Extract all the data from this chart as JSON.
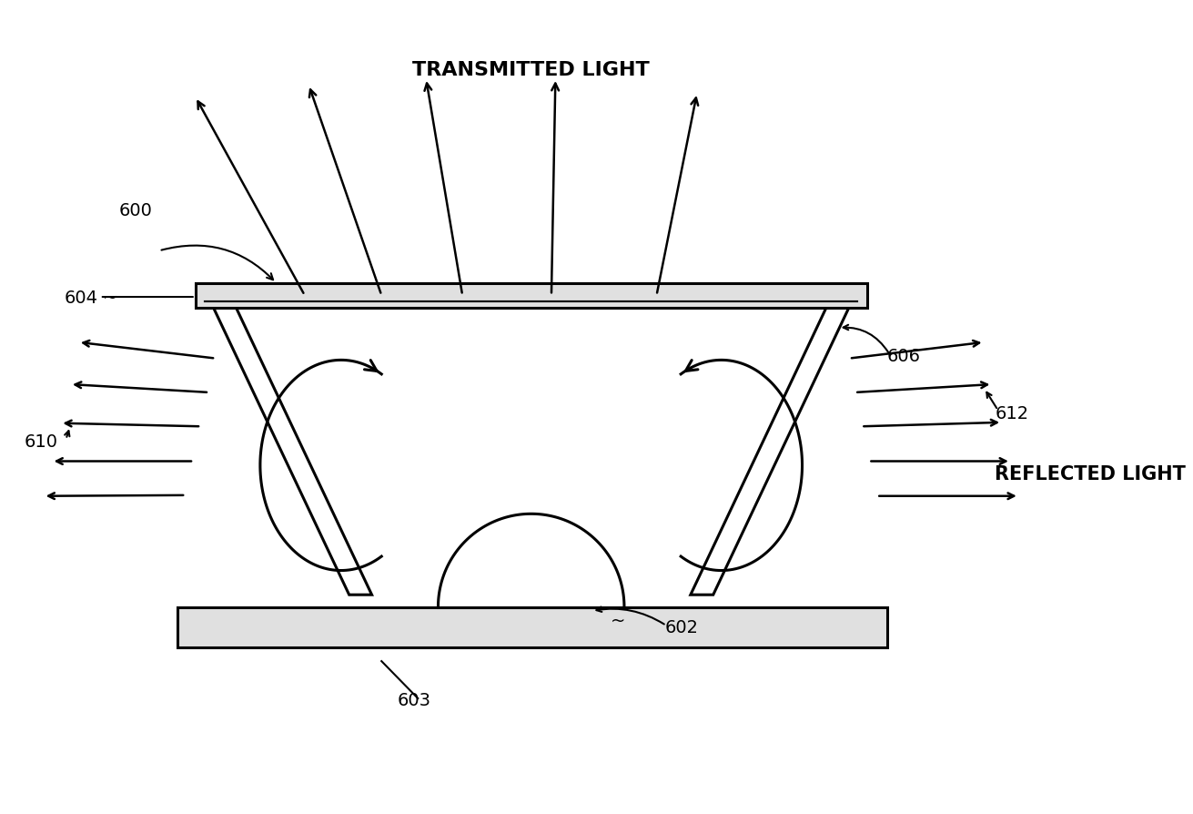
{
  "bg_color": "#ffffff",
  "line_color": "#000000",
  "labels": {
    "transmitted_light": "TRANSMITTED LIGHT",
    "reflected_light": "REFLECTED LIGHT",
    "600": "600",
    "602": "602",
    "603": "603",
    "604": "604",
    "606": "606",
    "610": "610",
    "612": "612"
  },
  "lw": 2.2,
  "arrow_lw": 1.8
}
